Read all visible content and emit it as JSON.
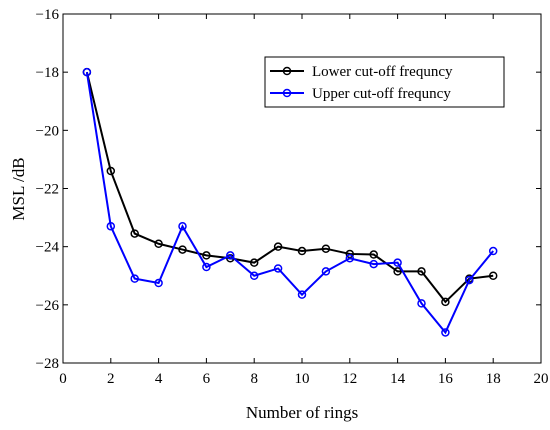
{
  "chart_data": {
    "type": "line",
    "xlabel": "Number of rings",
    "ylabel": "MSL /dB",
    "xlim": [
      0,
      20
    ],
    "ylim": [
      -28,
      -16
    ],
    "xticks": [
      0,
      2,
      4,
      6,
      8,
      10,
      12,
      14,
      16,
      18,
      20
    ],
    "yticks": [
      -16,
      -18,
      -20,
      -22,
      -24,
      -26,
      -28
    ],
    "grid": false,
    "legend_position": "top-right",
    "x": [
      1,
      2,
      3,
      4,
      5,
      6,
      7,
      8,
      9,
      10,
      11,
      12,
      13,
      14,
      15,
      16,
      17,
      18
    ],
    "series": [
      {
        "name": "Lower cut-off frequncy",
        "color": "#000000",
        "marker": "circle",
        "values": [
          -18.0,
          -21.4,
          -23.55,
          -23.9,
          -24.1,
          -24.3,
          -24.4,
          -24.55,
          -24.0,
          -24.15,
          -24.07,
          -24.25,
          -24.27,
          -24.85,
          -24.85,
          -25.9,
          -25.1,
          -25.0
        ]
      },
      {
        "name": "Upper cut-off frequncy",
        "color": "#0000ff",
        "marker": "circle",
        "values": [
          -18.0,
          -23.3,
          -25.1,
          -25.25,
          -23.3,
          -24.7,
          -24.3,
          -25.0,
          -24.75,
          -25.65,
          -24.85,
          -24.4,
          -24.6,
          -24.55,
          -25.95,
          -26.95,
          -25.15,
          -24.15
        ]
      }
    ]
  }
}
